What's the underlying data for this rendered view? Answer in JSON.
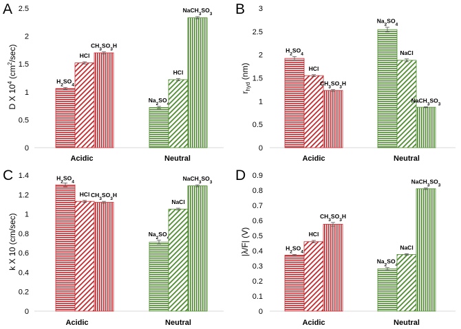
{
  "chart_data": [
    {
      "type": "bar",
      "panel": "A",
      "ylabel": "D X 10⁴ (cm²/sec)",
      "ylim": [
        0,
        2.5
      ],
      "yticks": [
        "0",
        "0.5",
        "1",
        "1.5",
        "2",
        "2.5"
      ],
      "grid": false,
      "categories": [
        "Acidic",
        "Neutral"
      ],
      "groups": [
        {
          "category": "Acidic",
          "bars": [
            {
              "label": "H₂SO₄",
              "value": 1.06,
              "error": 0.02,
              "pattern": "hlines",
              "color": "#c0282d"
            },
            {
              "label": "HCl",
              "value": 1.52,
              "error": 0.02,
              "pattern": "diag",
              "color": "#c0282d"
            },
            {
              "label": "CH₃SO₃H",
              "value": 1.7,
              "error": 0.02,
              "pattern": "vlines",
              "color": "#c0282d"
            }
          ]
        },
        {
          "category": "Neutral",
          "bars": [
            {
              "label": "Na₂SO₄",
              "value": 0.72,
              "error": 0.02,
              "pattern": "hlines",
              "color": "#4e8a2e"
            },
            {
              "label": "HCl",
              "value": 1.22,
              "error": 0.02,
              "pattern": "diag",
              "color": "#4e8a2e"
            },
            {
              "label": "NaCH₃SO₃",
              "value": 2.33,
              "error": 0.02,
              "pattern": "vlines",
              "color": "#4e8a2e"
            }
          ]
        }
      ]
    },
    {
      "type": "bar",
      "panel": "B",
      "ylabel": "r_hyd (nm)",
      "ylim": [
        0,
        3
      ],
      "yticks": [
        "0",
        "0.5",
        "1",
        "1.5",
        "2",
        "2.5",
        "3"
      ],
      "grid": false,
      "categories": [
        "Acidic",
        "Neutral"
      ],
      "groups": [
        {
          "category": "Acidic",
          "bars": [
            {
              "label": "H₂SO₄",
              "value": 1.92,
              "error": 0.04,
              "pattern": "hlines",
              "color": "#c0282d"
            },
            {
              "label": "HCl",
              "value": 1.55,
              "error": 0.02,
              "pattern": "diag",
              "color": "#c0282d"
            },
            {
              "label": "CH₃SO₃H",
              "value": 1.23,
              "error": 0.02,
              "pattern": "vlines",
              "color": "#c0282d"
            }
          ]
        },
        {
          "category": "Neutral",
          "bars": [
            {
              "label": "Na₂SO₄",
              "value": 2.54,
              "error": 0.05,
              "pattern": "hlines",
              "color": "#4e8a2e"
            },
            {
              "label": "NaCl",
              "value": 1.88,
              "error": 0.03,
              "pattern": "diag",
              "color": "#4e8a2e"
            },
            {
              "label": "NaCH₃SO₃",
              "value": 0.87,
              "error": 0.01,
              "pattern": "vlines",
              "color": "#4e8a2e"
            }
          ]
        }
      ]
    },
    {
      "type": "bar",
      "panel": "C",
      "ylabel": "k X 10 (cm/sec)",
      "ylim": [
        0,
        1.4
      ],
      "yticks": [
        "0",
        "0.2",
        "0.4",
        "0.6",
        "0.8",
        "1",
        "1.2",
        "1.4"
      ],
      "grid": false,
      "categories": [
        "Acidic",
        "Neutral"
      ],
      "groups": [
        {
          "category": "Acidic",
          "bars": [
            {
              "label": "H₂SO₄",
              "value": 1.3,
              "error": 0.02,
              "pattern": "hlines",
              "color": "#c0282d"
            },
            {
              "label": "HCl",
              "value": 1.13,
              "error": 0.01,
              "pattern": "diag",
              "color": "#c0282d"
            },
            {
              "label": "CH₃SO₃H",
              "value": 1.12,
              "error": 0.01,
              "pattern": "vlines",
              "color": "#c0282d"
            }
          ]
        },
        {
          "category": "Neutral",
          "bars": [
            {
              "label": "Na₂SO₄",
              "value": 0.71,
              "error": 0.02,
              "pattern": "hlines",
              "color": "#4e8a2e"
            },
            {
              "label": "NaCl",
              "value": 1.05,
              "error": 0.01,
              "pattern": "diag",
              "color": "#4e8a2e"
            },
            {
              "label": "NaCH₃SO₃",
              "value": 1.29,
              "error": 0.01,
              "pattern": "vlines",
              "color": "#4e8a2e"
            }
          ]
        }
      ]
    },
    {
      "type": "bar",
      "panel": "D",
      "ylabel": "|λ/F| (V)",
      "ylim": [
        0,
        0.9
      ],
      "yticks": [
        "0",
        "0.1",
        "0.2",
        "0.3",
        "0.4",
        "0.5",
        "0.6",
        "0.7",
        "0.8",
        "0.9"
      ],
      "grid": false,
      "categories": [
        "Acidic",
        "Neutral"
      ],
      "groups": [
        {
          "category": "Acidic",
          "bars": [
            {
              "label": "H₂SO₄",
              "value": 0.37,
              "error": 0.005,
              "pattern": "hlines",
              "color": "#c0282d"
            },
            {
              "label": "HCl",
              "value": 0.46,
              "error": 0.008,
              "pattern": "diag",
              "color": "#c0282d"
            },
            {
              "label": "CH₃SO₃H",
              "value": 0.575,
              "error": 0.012,
              "pattern": "vlines",
              "color": "#c0282d"
            }
          ]
        },
        {
          "category": "Neutral",
          "bars": [
            {
              "label": "Na₂SO₄",
              "value": 0.28,
              "error": 0.008,
              "pattern": "hlines",
              "color": "#4e8a2e"
            },
            {
              "label": "NaCl",
              "value": 0.375,
              "error": 0.005,
              "pattern": "diag",
              "color": "#4e8a2e"
            },
            {
              "label": "NaCH₃SO₃",
              "value": 0.81,
              "error": 0.005,
              "pattern": "vlines",
              "color": "#4e8a2e"
            }
          ]
        }
      ]
    }
  ]
}
